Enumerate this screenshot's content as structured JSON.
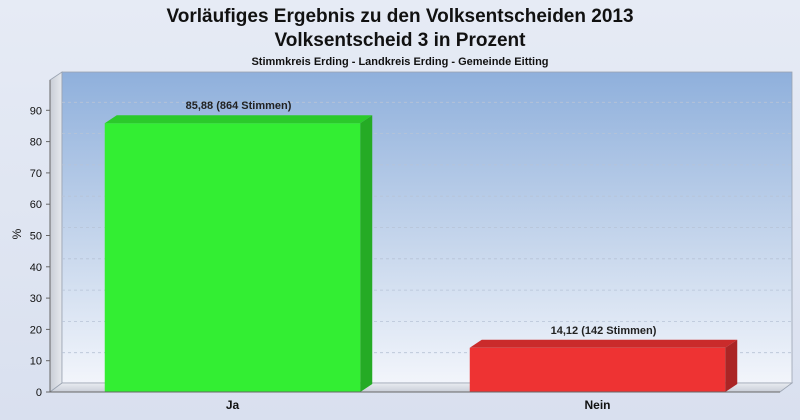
{
  "chart_data": {
    "type": "bar",
    "title": "Vorläufiges Ergebnis zu den Volksentscheiden 2013",
    "title_line2": "Volksentscheid 3 in Prozent",
    "subtitle": "Stimmkreis Erding - Landkreis Erding - Gemeinde Eitting",
    "ylabel": "%",
    "xlabel": "",
    "ylim": [
      0,
      100
    ],
    "yticks": [
      0,
      10,
      20,
      30,
      40,
      50,
      60,
      70,
      80,
      90
    ],
    "grid": true,
    "legend": "none",
    "categories": [
      "Ja",
      "Nein"
    ],
    "values": [
      85.88,
      14.12
    ],
    "data_labels": [
      "85,88 (864 Stimmen)",
      "14,12 (142 Stimmen)"
    ],
    "colors": [
      "#33ee33",
      "#ee3333"
    ]
  }
}
